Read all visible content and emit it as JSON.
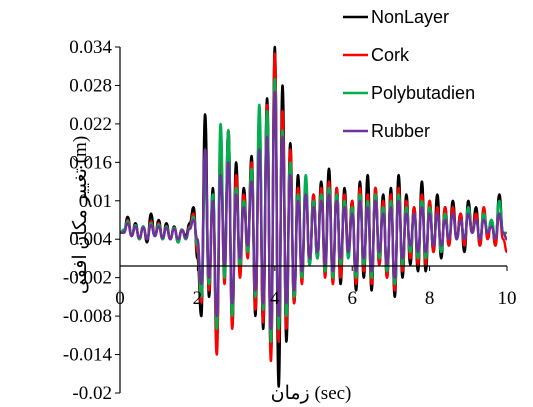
{
  "chart_data": {
    "type": "line",
    "title": "",
    "xlabel": "زمان (sec)",
    "ylabel": "تغییر مکان افقی (m)",
    "xlim": [
      0,
      10
    ],
    "ylim": [
      -0.02,
      0.034
    ],
    "x_ticks": [
      0,
      2,
      4,
      6,
      8,
      10
    ],
    "y_ticks": [
      -0.02,
      -0.014,
      -0.008,
      -0.002,
      0.004,
      0.01,
      0.016,
      0.022,
      0.028,
      0.034
    ],
    "x_tick_labels": [
      "0",
      "2",
      "4",
      "6",
      "8",
      "10"
    ],
    "y_tick_labels": [
      "-0.02",
      "-0.014",
      "-0.008",
      "-0.002",
      "0.004",
      "0.01",
      "0.016",
      "0.022",
      "0.028",
      "0.034"
    ],
    "grid": false,
    "legend_position": "top-right",
    "series": [
      {
        "name": "NonLayer",
        "color": "#000000",
        "x": [
          0,
          0.1,
          0.2,
          0.3,
          0.4,
          0.5,
          0.6,
          0.7,
          0.8,
          0.9,
          1.0,
          1.1,
          1.2,
          1.3,
          1.4,
          1.5,
          1.6,
          1.7,
          1.8,
          1.9,
          2.0,
          2.1,
          2.2,
          2.3,
          2.4,
          2.5,
          2.6,
          2.7,
          2.8,
          2.9,
          3.0,
          3.1,
          3.2,
          3.3,
          3.4,
          3.5,
          3.6,
          3.7,
          3.8,
          3.9,
          4.0,
          4.1,
          4.2,
          4.3,
          4.4,
          4.5,
          4.6,
          4.7,
          4.8,
          4.9,
          5.0,
          5.1,
          5.2,
          5.3,
          5.4,
          5.5,
          5.6,
          5.7,
          5.8,
          5.9,
          6.0,
          6.1,
          6.2,
          6.3,
          6.4,
          6.5,
          6.6,
          6.7,
          6.8,
          6.9,
          7.0,
          7.1,
          7.2,
          7.3,
          7.4,
          7.5,
          7.6,
          7.7,
          7.8,
          7.9,
          8.0,
          8.1,
          8.2,
          8.3,
          8.4,
          8.5,
          8.6,
          8.7,
          8.8,
          8.9,
          9.0,
          9.1,
          9.2,
          9.3,
          9.4,
          9.5,
          9.6,
          9.7,
          9.8,
          9.9,
          10.0
        ],
        "values": [
          0.005,
          0.0052,
          0.0075,
          0.0045,
          0.0065,
          0.004,
          0.006,
          0.0035,
          0.008,
          0.0045,
          0.007,
          0.004,
          0.0065,
          0.004,
          0.006,
          0.0035,
          0.0055,
          0.0045,
          0.0065,
          0.009,
          0.001,
          -0.008,
          0.0235,
          -0.005,
          0.012,
          -0.012,
          0.018,
          0.0,
          0.021,
          -0.009,
          0.016,
          0.0,
          0.012,
          0.002,
          0.017,
          -0.008,
          0.023,
          -0.01,
          0.026,
          -0.014,
          0.034,
          -0.019,
          0.028,
          -0.012,
          0.019,
          -0.006,
          0.014,
          -0.002,
          0.012,
          0.0,
          0.011,
          0.001,
          0.013,
          0.0,
          0.015,
          -0.002,
          0.012,
          -0.003,
          0.012,
          0.002,
          0.01,
          -0.004,
          0.013,
          -0.002,
          0.014,
          -0.004,
          0.012,
          0.0,
          0.011,
          -0.002,
          0.012,
          -0.005,
          0.014,
          -0.002,
          0.011,
          0.0,
          0.009,
          -0.001,
          0.013,
          -0.001,
          0.01,
          0.002,
          0.011,
          0.001,
          0.009,
          0.003,
          0.01,
          0.004,
          0.008,
          0.002,
          0.01,
          0.005,
          0.009,
          0.003,
          0.008,
          0.005,
          0.007,
          0.003,
          0.011,
          0.005,
          0.004
        ]
      },
      {
        "name": "Cork",
        "color": "#ff0000",
        "x": [
          0,
          0.1,
          0.2,
          0.3,
          0.4,
          0.5,
          0.6,
          0.7,
          0.8,
          0.9,
          1.0,
          1.1,
          1.2,
          1.3,
          1.4,
          1.5,
          1.6,
          1.7,
          1.8,
          1.9,
          2.0,
          2.1,
          2.2,
          2.3,
          2.4,
          2.5,
          2.6,
          2.7,
          2.8,
          2.9,
          3.0,
          3.1,
          3.2,
          3.3,
          3.4,
          3.5,
          3.6,
          3.7,
          3.8,
          3.9,
          4.0,
          4.1,
          4.2,
          4.3,
          4.4,
          4.5,
          4.6,
          4.7,
          4.8,
          4.9,
          5.0,
          5.1,
          5.2,
          5.3,
          5.4,
          5.5,
          5.6,
          5.7,
          5.8,
          5.9,
          6.0,
          6.1,
          6.2,
          6.3,
          6.4,
          6.5,
          6.6,
          6.7,
          6.8,
          6.9,
          7.0,
          7.1,
          7.2,
          7.3,
          7.4,
          7.5,
          7.6,
          7.7,
          7.8,
          7.9,
          8.0,
          8.1,
          8.2,
          8.3,
          8.4,
          8.5,
          8.6,
          8.7,
          8.8,
          8.9,
          9.0,
          9.1,
          9.2,
          9.3,
          9.4,
          9.5,
          9.6,
          9.7,
          9.8,
          9.9,
          10.0
        ],
        "values": [
          0.005,
          0.005,
          0.007,
          0.0045,
          0.006,
          0.004,
          0.0058,
          0.004,
          0.0068,
          0.0045,
          0.0065,
          0.004,
          0.006,
          0.004,
          0.0058,
          0.004,
          0.0055,
          0.004,
          0.006,
          0.008,
          0.002,
          -0.006,
          0.015,
          -0.004,
          0.01,
          -0.014,
          0.019,
          -0.003,
          0.021,
          -0.01,
          0.014,
          -0.002,
          0.011,
          0.001,
          0.016,
          -0.007,
          0.02,
          -0.009,
          0.025,
          -0.015,
          0.033,
          -0.012,
          0.024,
          -0.01,
          0.018,
          -0.006,
          0.012,
          -0.003,
          0.013,
          0.0,
          0.011,
          0.001,
          0.012,
          -0.002,
          0.013,
          -0.003,
          0.012,
          -0.002,
          0.011,
          0.002,
          0.01,
          -0.003,
          0.012,
          -0.001,
          0.011,
          -0.003,
          0.012,
          0.0,
          0.01,
          -0.002,
          0.011,
          -0.004,
          0.012,
          -0.001,
          0.01,
          0.001,
          0.009,
          0.0,
          0.011,
          0.0,
          0.01,
          0.002,
          0.009,
          0.002,
          0.009,
          0.003,
          0.009,
          0.004,
          0.008,
          0.003,
          0.009,
          0.005,
          0.008,
          0.003,
          0.009,
          0.004,
          0.007,
          0.003,
          0.008,
          0.004,
          0.002
        ]
      },
      {
        "name": "Polybutadien",
        "color": "#00b050",
        "x": [
          0,
          0.1,
          0.2,
          0.3,
          0.4,
          0.5,
          0.6,
          0.7,
          0.8,
          0.9,
          1.0,
          1.1,
          1.2,
          1.3,
          1.4,
          1.5,
          1.6,
          1.7,
          1.8,
          1.9,
          2.0,
          2.1,
          2.2,
          2.3,
          2.4,
          2.5,
          2.6,
          2.7,
          2.8,
          2.9,
          3.0,
          3.1,
          3.2,
          3.3,
          3.4,
          3.5,
          3.6,
          3.7,
          3.8,
          3.9,
          4.0,
          4.1,
          4.2,
          4.3,
          4.4,
          4.5,
          4.6,
          4.7,
          4.8,
          4.9,
          5.0,
          5.1,
          5.2,
          5.3,
          5.4,
          5.5,
          5.6,
          5.7,
          5.8,
          5.9,
          6.0,
          6.1,
          6.2,
          6.3,
          6.4,
          6.5,
          6.6,
          6.7,
          6.8,
          6.9,
          7.0,
          7.1,
          7.2,
          7.3,
          7.4,
          7.5,
          7.6,
          7.7,
          7.8,
          7.9,
          8.0,
          8.1,
          8.2,
          8.3,
          8.4,
          8.5,
          8.6,
          8.7,
          8.8,
          8.9,
          9.0,
          9.1,
          9.2,
          9.3,
          9.4,
          9.5,
          9.6,
          9.7,
          9.8,
          9.9,
          10.0
        ],
        "values": [
          0.005,
          0.0055,
          0.0068,
          0.0045,
          0.0062,
          0.004,
          0.006,
          0.004,
          0.0065,
          0.0045,
          0.0063,
          0.004,
          0.006,
          0.004,
          0.0058,
          0.0035,
          0.0055,
          0.004,
          0.0058,
          0.0075,
          0.003,
          -0.005,
          0.014,
          -0.003,
          0.011,
          -0.01,
          0.022,
          -0.002,
          0.021,
          -0.008,
          0.012,
          0.0,
          0.01,
          0.002,
          0.015,
          -0.005,
          0.025,
          -0.007,
          0.024,
          -0.012,
          0.029,
          -0.01,
          0.021,
          -0.008,
          0.016,
          -0.005,
          0.011,
          -0.002,
          0.014,
          0.0,
          0.01,
          0.001,
          0.011,
          -0.001,
          0.012,
          -0.002,
          0.011,
          0.0,
          0.01,
          0.001,
          0.009,
          -0.002,
          0.011,
          0.0,
          0.01,
          -0.002,
          0.011,
          0.001,
          0.009,
          -0.001,
          0.01,
          -0.003,
          0.011,
          0.0,
          0.009,
          0.002,
          0.008,
          0.001,
          0.01,
          0.001,
          0.009,
          0.003,
          0.008,
          0.002,
          0.008,
          0.004,
          0.008,
          0.004,
          0.007,
          0.004,
          0.009,
          0.005,
          0.007,
          0.004,
          0.008,
          0.005,
          0.007,
          0.004,
          0.01,
          0.005,
          0.005
        ]
      },
      {
        "name": "Rubber",
        "color": "#7030a0",
        "x": [
          0,
          0.1,
          0.2,
          0.3,
          0.4,
          0.5,
          0.6,
          0.7,
          0.8,
          0.9,
          1.0,
          1.1,
          1.2,
          1.3,
          1.4,
          1.5,
          1.6,
          1.7,
          1.8,
          1.9,
          2.0,
          2.1,
          2.2,
          2.3,
          2.4,
          2.5,
          2.6,
          2.7,
          2.8,
          2.9,
          3.0,
          3.1,
          3.2,
          3.3,
          3.4,
          3.5,
          3.6,
          3.7,
          3.8,
          3.9,
          4.0,
          4.1,
          4.2,
          4.3,
          4.4,
          4.5,
          4.6,
          4.7,
          4.8,
          4.9,
          5.0,
          5.1,
          5.2,
          5.3,
          5.4,
          5.5,
          5.6,
          5.7,
          5.8,
          5.9,
          6.0,
          6.1,
          6.2,
          6.3,
          6.4,
          6.5,
          6.6,
          6.7,
          6.8,
          6.9,
          7.0,
          7.1,
          7.2,
          7.3,
          7.4,
          7.5,
          7.6,
          7.7,
          7.8,
          7.9,
          8.0,
          8.1,
          8.2,
          8.3,
          8.4,
          8.5,
          8.6,
          8.7,
          8.8,
          8.9,
          9.0,
          9.1,
          9.2,
          9.3,
          9.4,
          9.5,
          9.6,
          9.7,
          9.8,
          9.9,
          10.0
        ],
        "values": [
          0.005,
          0.005,
          0.0065,
          0.0045,
          0.006,
          0.0042,
          0.0058,
          0.004,
          0.0062,
          0.0045,
          0.006,
          0.0042,
          0.0058,
          0.004,
          0.0056,
          0.004,
          0.0054,
          0.0042,
          0.0056,
          0.007,
          0.004,
          -0.003,
          0.018,
          -0.002,
          0.01,
          -0.008,
          0.014,
          0.0,
          0.016,
          -0.006,
          0.011,
          0.001,
          0.009,
          0.003,
          0.013,
          -0.004,
          0.018,
          -0.006,
          0.02,
          -0.01,
          0.027,
          -0.008,
          0.02,
          -0.006,
          0.014,
          -0.004,
          0.01,
          -0.001,
          0.011,
          0.001,
          0.009,
          0.002,
          0.01,
          0.0,
          0.011,
          -0.001,
          0.01,
          0.001,
          0.009,
          0.002,
          0.008,
          -0.001,
          0.01,
          0.001,
          0.009,
          -0.001,
          0.01,
          0.002,
          0.008,
          0.0,
          0.009,
          -0.002,
          0.01,
          0.001,
          0.008,
          0.003,
          0.008,
          0.002,
          0.009,
          0.002,
          0.008,
          0.003,
          0.008,
          0.003,
          0.007,
          0.004,
          0.008,
          0.004,
          0.007,
          0.004,
          0.008,
          0.005,
          0.007,
          0.004,
          0.007,
          0.005,
          0.006,
          0.004,
          0.008,
          0.005,
          0.004
        ]
      }
    ]
  }
}
